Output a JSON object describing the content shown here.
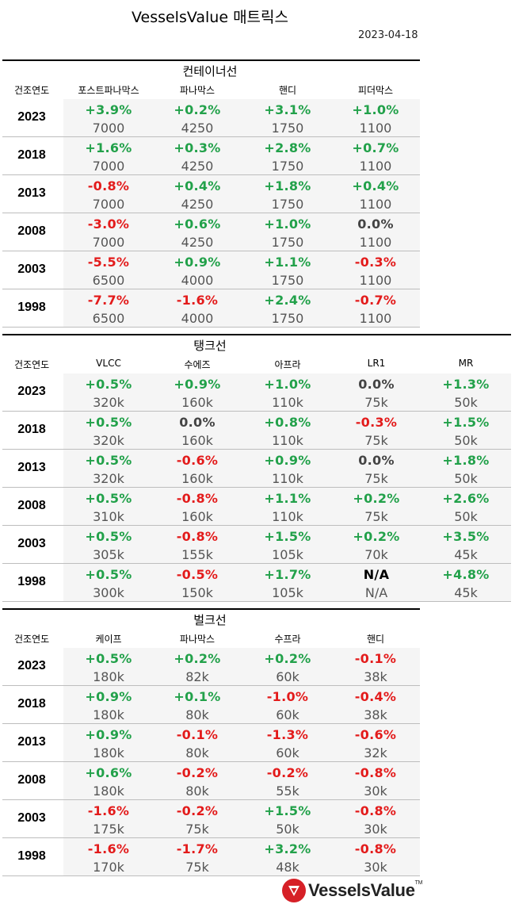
{
  "title": "VesselsValue 매트릭스",
  "date": "2023-04-18",
  "logo": {
    "text": "VesselsValue",
    "tm": "TM",
    "icon": "vesselsvalue-logo-icon",
    "color": "#d62027"
  },
  "colors": {
    "positive": "#22a14a",
    "negative": "#e31b1b",
    "zero": "#444444",
    "value": "#555555"
  },
  "sections": [
    {
      "title": "컨테이너선",
      "headers": [
        "건조연도",
        "포스트파나막스",
        "파나막스",
        "핸디",
        "피더막스"
      ],
      "rows": [
        {
          "year": "2023",
          "cells": [
            [
              "+3.9%",
              "7000"
            ],
            [
              "+0.2%",
              "4250"
            ],
            [
              "+3.1%",
              "1750"
            ],
            [
              "+1.0%",
              "1100"
            ]
          ]
        },
        {
          "year": "2018",
          "cells": [
            [
              "+1.6%",
              "7000"
            ],
            [
              "+0.3%",
              "4250"
            ],
            [
              "+2.8%",
              "1750"
            ],
            [
              "+0.7%",
              "1100"
            ]
          ]
        },
        {
          "year": "2013",
          "cells": [
            [
              "-0.8%",
              "7000"
            ],
            [
              "+0.4%",
              "4250"
            ],
            [
              "+1.8%",
              "1750"
            ],
            [
              "+0.4%",
              "1100"
            ]
          ]
        },
        {
          "year": "2008",
          "cells": [
            [
              "-3.0%",
              "7000"
            ],
            [
              "+0.6%",
              "4250"
            ],
            [
              "+1.0%",
              "1750"
            ],
            [
              "0.0%",
              "1100"
            ]
          ]
        },
        {
          "year": "2003",
          "cells": [
            [
              "-5.5%",
              "6500"
            ],
            [
              "+0.9%",
              "4000"
            ],
            [
              "+1.1%",
              "1750"
            ],
            [
              "-0.3%",
              "1100"
            ]
          ]
        },
        {
          "year": "1998",
          "cells": [
            [
              "-7.7%",
              "6500"
            ],
            [
              "-1.6%",
              "4000"
            ],
            [
              "+2.4%",
              "1750"
            ],
            [
              "-0.7%",
              "1100"
            ]
          ]
        }
      ]
    },
    {
      "title": "탱크선",
      "headers": [
        "건조연도",
        "VLCC",
        "수에즈",
        "아프라",
        "LR1",
        "MR"
      ],
      "rows": [
        {
          "year": "2023",
          "cells": [
            [
              "+0.5%",
              "320k"
            ],
            [
              "+0.9%",
              "160k"
            ],
            [
              "+1.0%",
              "110k"
            ],
            [
              "0.0%",
              "75k"
            ],
            [
              "+1.3%",
              "50k"
            ]
          ]
        },
        {
          "year": "2018",
          "cells": [
            [
              "+0.5%",
              "320k"
            ],
            [
              "0.0%",
              "160k"
            ],
            [
              "+0.8%",
              "110k"
            ],
            [
              "-0.3%",
              "75k"
            ],
            [
              "+1.5%",
              "50k"
            ]
          ]
        },
        {
          "year": "2013",
          "cells": [
            [
              "+0.5%",
              "320k"
            ],
            [
              "-0.6%",
              "160k"
            ],
            [
              "+0.9%",
              "110k"
            ],
            [
              "0.0%",
              "75k"
            ],
            [
              "+1.8%",
              "50k"
            ]
          ]
        },
        {
          "year": "2008",
          "cells": [
            [
              "+0.5%",
              "310k"
            ],
            [
              "-0.8%",
              "160k"
            ],
            [
              "+1.1%",
              "110k"
            ],
            [
              "+0.2%",
              "75k"
            ],
            [
              "+2.6%",
              "50k"
            ]
          ]
        },
        {
          "year": "2003",
          "cells": [
            [
              "+0.5%",
              "305k"
            ],
            [
              "-0.8%",
              "155k"
            ],
            [
              "+1.5%",
              "105k"
            ],
            [
              "+0.2%",
              "70k"
            ],
            [
              "+3.5%",
              "45k"
            ]
          ]
        },
        {
          "year": "1998",
          "cells": [
            [
              "+0.5%",
              "300k"
            ],
            [
              "-0.5%",
              "150k"
            ],
            [
              "+1.7%",
              "105k"
            ],
            [
              "N/A",
              "N/A"
            ],
            [
              "+4.8%",
              "45k"
            ]
          ]
        }
      ]
    },
    {
      "title": "벌크선",
      "headers": [
        "건조연도",
        "케이프",
        "파나막스",
        "수프라",
        "핸디"
      ],
      "rows": [
        {
          "year": "2023",
          "cells": [
            [
              "+0.5%",
              "180k"
            ],
            [
              "+0.2%",
              "82k"
            ],
            [
              "+0.2%",
              "60k"
            ],
            [
              "-0.1%",
              "38k"
            ]
          ]
        },
        {
          "year": "2018",
          "cells": [
            [
              "+0.9%",
              "180k"
            ],
            [
              "+0.1%",
              "80k"
            ],
            [
              "-1.0%",
              "60k"
            ],
            [
              "-0.4%",
              "38k"
            ]
          ]
        },
        {
          "year": "2013",
          "cells": [
            [
              "+0.9%",
              "180k"
            ],
            [
              "-0.1%",
              "80k"
            ],
            [
              "-1.3%",
              "60k"
            ],
            [
              "-0.6%",
              "32k"
            ]
          ]
        },
        {
          "year": "2008",
          "cells": [
            [
              "+0.6%",
              "180k"
            ],
            [
              "-0.2%",
              "80k"
            ],
            [
              "-0.2%",
              "55k"
            ],
            [
              "-0.8%",
              "30k"
            ]
          ]
        },
        {
          "year": "2003",
          "cells": [
            [
              "-1.6%",
              "175k"
            ],
            [
              "-0.2%",
              "75k"
            ],
            [
              "+1.5%",
              "50k"
            ],
            [
              "-0.8%",
              "30k"
            ]
          ]
        },
        {
          "year": "1998",
          "cells": [
            [
              "-1.6%",
              "170k"
            ],
            [
              "-1.7%",
              "75k"
            ],
            [
              "+3.2%",
              "48k"
            ],
            [
              "-0.8%",
              "30k"
            ]
          ]
        }
      ]
    }
  ]
}
